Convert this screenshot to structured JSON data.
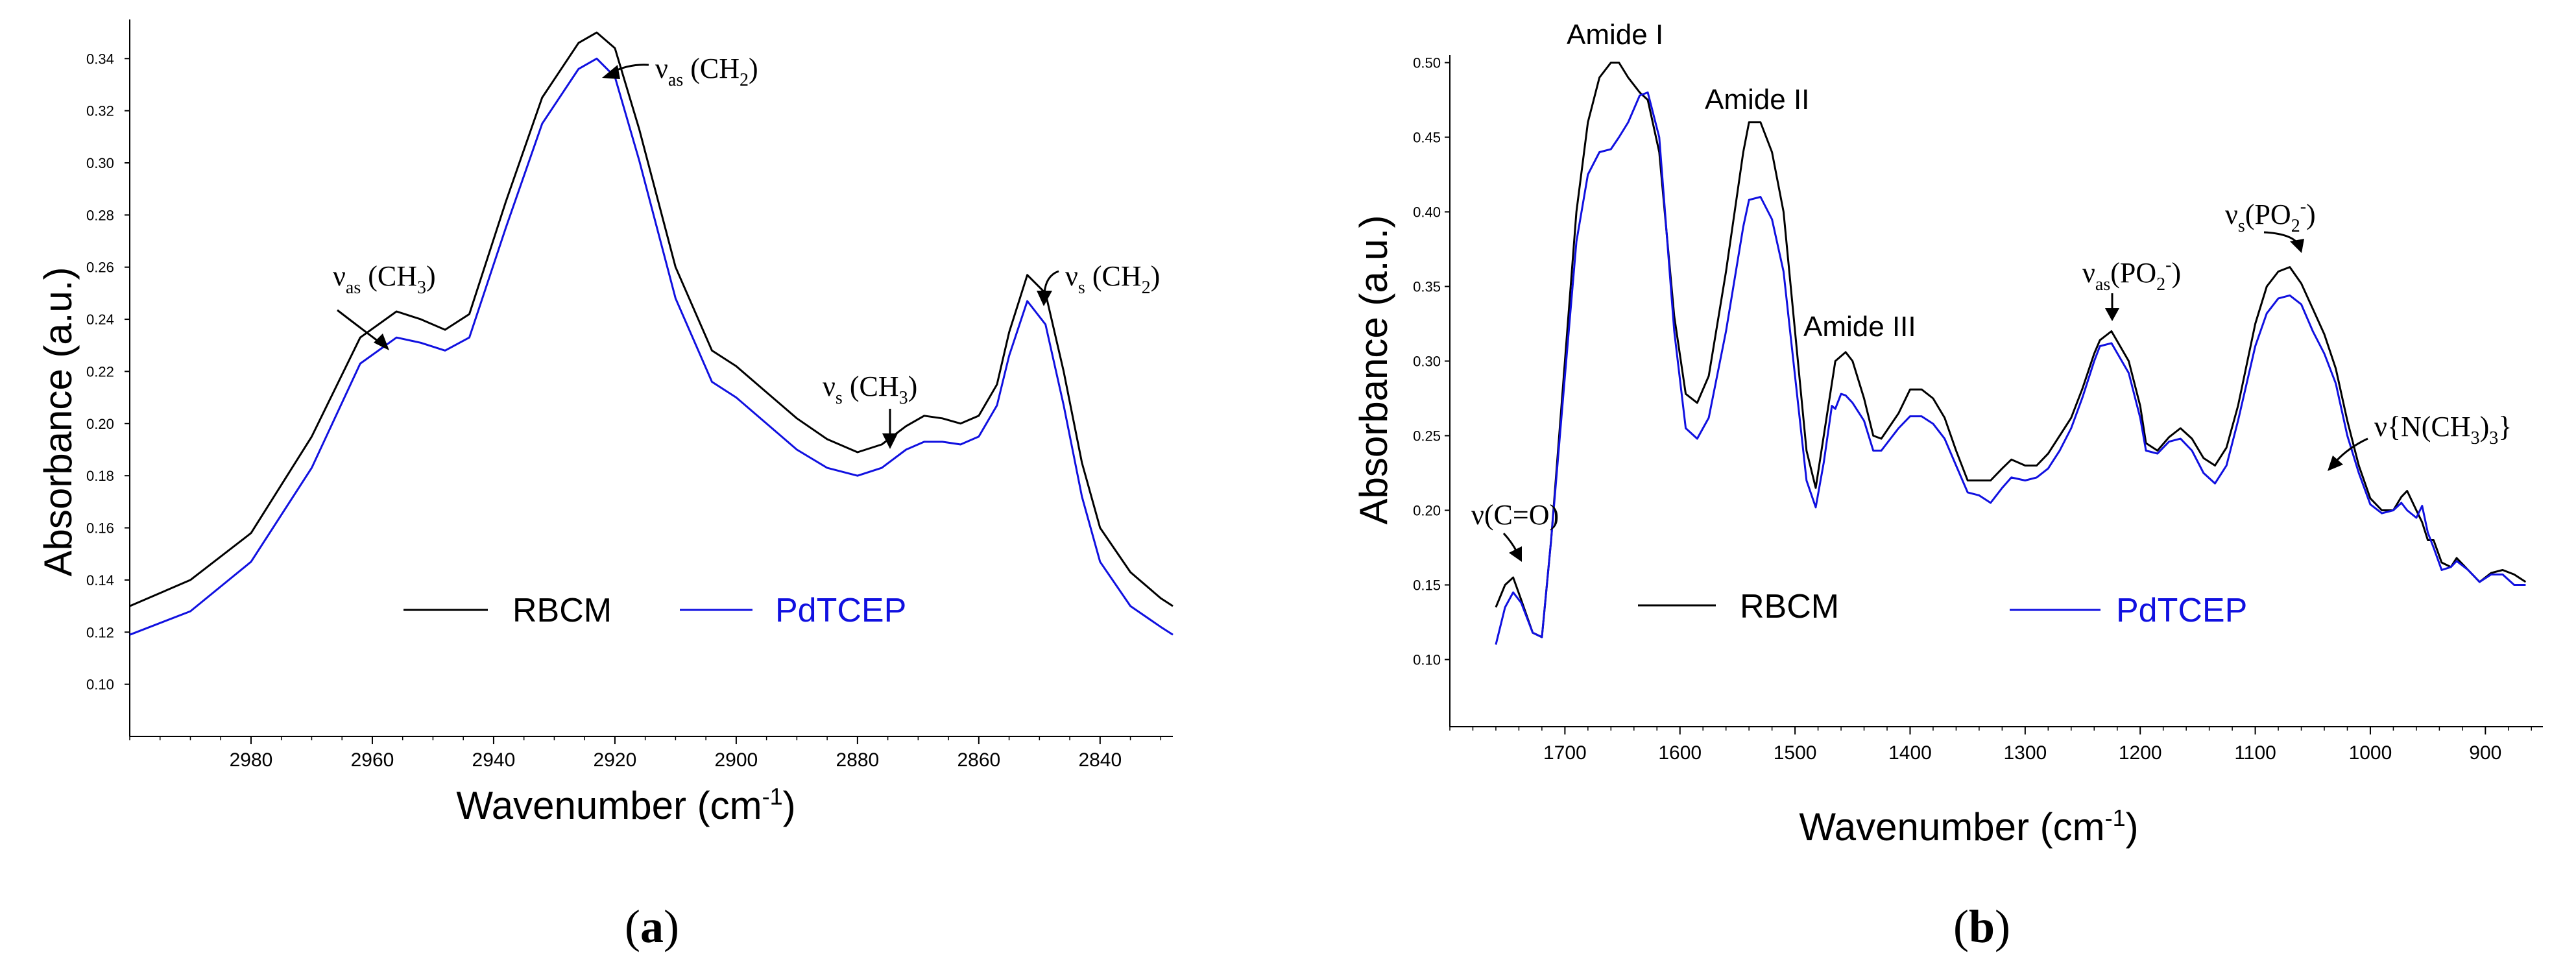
{
  "colors": {
    "rbcm": "#000000",
    "pdtcep": "#1010e0",
    "axis": "#000000"
  },
  "chart_data": [
    {
      "type": "line",
      "panel_label": {
        "open": "(",
        "letter": "a",
        "close": ")"
      },
      "xlabel": {
        "main": "Wavenumber (cm",
        "sup": "-1",
        "end": ")"
      },
      "ylabel": "Absorbance (a.u.)",
      "xlim": [
        3000,
        2828
      ],
      "ylim": [
        0.08,
        0.355
      ],
      "xticks": [
        2980,
        2960,
        2940,
        2920,
        2900,
        2880,
        2860,
        2840
      ],
      "xtick_labels": [
        "2980",
        "2960",
        "2940",
        "2920",
        "2900",
        "2880",
        "2860",
        "2840"
      ],
      "yticks": [
        0.1,
        0.12,
        0.14,
        0.16,
        0.18,
        0.2,
        0.22,
        0.24,
        0.26,
        0.28,
        0.3,
        0.32,
        0.34
      ],
      "ytick_labels": [
        "0.10",
        "0.12",
        "0.14",
        "0.16",
        "0.18",
        "0.20",
        "0.22",
        "0.24",
        "0.26",
        "0.28",
        "0.30",
        "0.32",
        "0.34"
      ],
      "legend": [
        "RBCM",
        "PdTCEP"
      ],
      "series": [
        {
          "name": "RBCM",
          "x": [
            3000,
            2990,
            2980,
            2970,
            2962,
            2956,
            2952,
            2948,
            2944,
            2938,
            2932,
            2926,
            2923,
            2920,
            2916,
            2910,
            2904,
            2900,
            2895,
            2890,
            2885,
            2880,
            2876,
            2872,
            2869,
            2866,
            2863,
            2860,
            2857,
            2855,
            2852,
            2849,
            2846,
            2843,
            2840,
            2835,
            2830,
            2828
          ],
          "y": [
            0.13,
            0.14,
            0.158,
            0.195,
            0.233,
            0.243,
            0.24,
            0.236,
            0.242,
            0.285,
            0.325,
            0.346,
            0.35,
            0.344,
            0.313,
            0.26,
            0.228,
            0.222,
            0.212,
            0.202,
            0.194,
            0.189,
            0.192,
            0.199,
            0.203,
            0.202,
            0.2,
            0.203,
            0.215,
            0.235,
            0.257,
            0.25,
            0.22,
            0.185,
            0.16,
            0.143,
            0.133,
            0.13
          ]
        },
        {
          "name": "PdTCEP",
          "x": [
            3000,
            2990,
            2980,
            2970,
            2962,
            2956,
            2952,
            2948,
            2944,
            2938,
            2932,
            2926,
            2923,
            2920,
            2916,
            2910,
            2904,
            2900,
            2895,
            2890,
            2885,
            2880,
            2876,
            2872,
            2869,
            2866,
            2863,
            2860,
            2857,
            2855,
            2852,
            2849,
            2846,
            2843,
            2840,
            2835,
            2830,
            2828
          ],
          "y": [
            0.119,
            0.128,
            0.147,
            0.183,
            0.223,
            0.233,
            0.231,
            0.228,
            0.233,
            0.275,
            0.315,
            0.336,
            0.34,
            0.333,
            0.301,
            0.248,
            0.216,
            0.21,
            0.2,
            0.19,
            0.183,
            0.18,
            0.183,
            0.19,
            0.193,
            0.193,
            0.192,
            0.195,
            0.207,
            0.226,
            0.247,
            0.238,
            0.207,
            0.172,
            0.147,
            0.13,
            0.122,
            0.119
          ]
        }
      ],
      "annotations": [
        {
          "pre": "ν",
          "sub": "as",
          "post": " (CH",
          "sub2": "3",
          "end": ")",
          "x": 2955,
          "y": 0.243
        },
        {
          "pre": "ν",
          "sub": "as",
          "post": " (CH",
          "sub2": "2",
          "end": ")",
          "x": 2923,
          "y": 0.35
        },
        {
          "pre": "ν",
          "sub": "s",
          "post": " (CH",
          "sub2": "3",
          "end": ")",
          "x": 2868,
          "y": 0.202
        },
        {
          "pre": "ν",
          "sub": "s",
          "post": " (CH",
          "sub2": "2",
          "end": ")",
          "x": 2853,
          "y": 0.257
        }
      ]
    },
    {
      "type": "line",
      "panel_label": {
        "open": "(",
        "letter": "b",
        "close": ")"
      },
      "xlabel": {
        "main": "Wavenumber (cm",
        "sup": "-1",
        "end": ")"
      },
      "ylabel": "Absorbance (a.u.)",
      "xlim": [
        1800,
        850
      ],
      "ylim": [
        0.055,
        0.505
      ],
      "xticks": [
        1700,
        1600,
        1500,
        1400,
        1300,
        1200,
        1100,
        1000,
        900
      ],
      "xtick_labels": [
        "1700",
        "1600",
        "1500",
        "1400",
        "1300",
        "1200",
        "1100",
        "1000",
        "900"
      ],
      "yticks": [
        0.1,
        0.15,
        0.2,
        0.25,
        0.3,
        0.35,
        0.4,
        0.45,
        0.5
      ],
      "ytick_labels": [
        "0.10",
        "0.15",
        "0.20",
        "0.25",
        "0.30",
        "0.35",
        "0.40",
        "0.45",
        "0.50"
      ],
      "legend": [
        "RBCM",
        "PdTCEP"
      ],
      "series": [
        {
          "name": "RBCM",
          "x": [
            1760,
            1752,
            1745,
            1738,
            1728,
            1720,
            1712,
            1700,
            1690,
            1680,
            1670,
            1660,
            1653,
            1645,
            1635,
            1628,
            1618,
            1605,
            1595,
            1585,
            1575,
            1560,
            1545,
            1540,
            1530,
            1520,
            1510,
            1500,
            1490,
            1482,
            1475,
            1465,
            1456,
            1450,
            1440,
            1432,
            1425,
            1410,
            1400,
            1390,
            1380,
            1370,
            1360,
            1350,
            1340,
            1330,
            1320,
            1312,
            1300,
            1290,
            1280,
            1270,
            1260,
            1250,
            1240,
            1235,
            1225,
            1210,
            1200,
            1195,
            1185,
            1175,
            1165,
            1155,
            1145,
            1135,
            1125,
            1115,
            1100,
            1090,
            1080,
            1070,
            1060,
            1050,
            1040,
            1030,
            1020,
            1010,
            1000,
            990,
            980,
            973,
            968,
            960,
            955,
            950,
            945,
            938,
            930,
            925,
            915,
            905,
            895,
            885,
            875,
            865
          ],
          "y": [
            0.135,
            0.15,
            0.155,
            0.14,
            0.118,
            0.115,
            0.18,
            0.3,
            0.4,
            0.46,
            0.49,
            0.5,
            0.5,
            0.49,
            0.48,
            0.475,
            0.44,
            0.33,
            0.278,
            0.272,
            0.29,
            0.36,
            0.44,
            0.46,
            0.46,
            0.44,
            0.4,
            0.32,
            0.24,
            0.215,
            0.25,
            0.3,
            0.306,
            0.3,
            0.275,
            0.25,
            0.248,
            0.265,
            0.281,
            0.281,
            0.275,
            0.262,
            0.24,
            0.22,
            0.22,
            0.22,
            0.228,
            0.234,
            0.23,
            0.23,
            0.238,
            0.25,
            0.262,
            0.282,
            0.305,
            0.314,
            0.32,
            0.3,
            0.27,
            0.245,
            0.24,
            0.249,
            0.255,
            0.248,
            0.235,
            0.23,
            0.242,
            0.27,
            0.325,
            0.35,
            0.36,
            0.363,
            0.352,
            0.335,
            0.318,
            0.295,
            0.26,
            0.23,
            0.208,
            0.2,
            0.2,
            0.209,
            0.213,
            0.2,
            0.192,
            0.18,
            0.18,
            0.165,
            0.162,
            0.168,
            0.16,
            0.152,
            0.158,
            0.16,
            0.157,
            0.152
          ]
        },
        {
          "name": "PdTCEP",
          "x": [
            1760,
            1752,
            1745,
            1738,
            1728,
            1720,
            1712,
            1700,
            1690,
            1680,
            1670,
            1660,
            1653,
            1645,
            1635,
            1628,
            1618,
            1605,
            1595,
            1585,
            1575,
            1560,
            1545,
            1540,
            1530,
            1520,
            1510,
            1500,
            1490,
            1482,
            1475,
            1468,
            1465,
            1460,
            1456,
            1450,
            1440,
            1432,
            1425,
            1410,
            1400,
            1390,
            1380,
            1370,
            1360,
            1350,
            1340,
            1330,
            1320,
            1312,
            1300,
            1290,
            1280,
            1270,
            1260,
            1250,
            1240,
            1235,
            1225,
            1210,
            1200,
            1195,
            1185,
            1175,
            1165,
            1155,
            1145,
            1135,
            1125,
            1115,
            1100,
            1090,
            1080,
            1070,
            1060,
            1050,
            1040,
            1030,
            1020,
            1010,
            1000,
            990,
            980,
            973,
            968,
            960,
            955,
            950,
            945,
            938,
            930,
            925,
            915,
            905,
            895,
            885,
            875,
            865
          ],
          "y": [
            0.11,
            0.135,
            0.145,
            0.138,
            0.118,
            0.115,
            0.18,
            0.29,
            0.38,
            0.425,
            0.44,
            0.442,
            0.45,
            0.46,
            0.478,
            0.48,
            0.45,
            0.32,
            0.255,
            0.248,
            0.262,
            0.32,
            0.39,
            0.408,
            0.41,
            0.395,
            0.36,
            0.29,
            0.22,
            0.202,
            0.232,
            0.27,
            0.268,
            0.278,
            0.277,
            0.272,
            0.26,
            0.24,
            0.24,
            0.255,
            0.263,
            0.263,
            0.258,
            0.248,
            0.23,
            0.212,
            0.21,
            0.205,
            0.215,
            0.222,
            0.22,
            0.222,
            0.228,
            0.24,
            0.255,
            0.276,
            0.3,
            0.31,
            0.312,
            0.292,
            0.262,
            0.24,
            0.238,
            0.246,
            0.248,
            0.24,
            0.225,
            0.218,
            0.23,
            0.26,
            0.31,
            0.332,
            0.342,
            0.344,
            0.338,
            0.32,
            0.305,
            0.285,
            0.25,
            0.225,
            0.204,
            0.198,
            0.2,
            0.205,
            0.2,
            0.195,
            0.203,
            0.185,
            0.175,
            0.16,
            0.162,
            0.166,
            0.16,
            0.152,
            0.157,
            0.157,
            0.15,
            0.15
          ]
        }
      ],
      "annotations": [
        {
          "kind": "amide",
          "text": "Amide I",
          "x": 1645,
          "y": 0.5
        },
        {
          "kind": "amide",
          "text": "Amide II",
          "x": 1538,
          "y": 0.46
        },
        {
          "kind": "amide",
          "text": "Amide III",
          "x": 1455,
          "y": 0.31
        },
        {
          "kind": "nu",
          "pre": "ν",
          "sub": "",
          "post": "(C=O)",
          "sub2": "",
          "end": "",
          "x": 1748,
          "y": 0.158
        },
        {
          "kind": "nu",
          "pre": "ν",
          "sub": "as",
          "post": "(PO",
          "sub2": "2",
          "sup": "-",
          "end": ")",
          "x": 1235,
          "y": 0.32
        },
        {
          "kind": "nu",
          "pre": "ν",
          "sub": "s",
          "post": "(PO",
          "sub2": "2",
          "sup": "-",
          "end": ")",
          "x": 1070,
          "y": 0.363
        },
        {
          "kind": "nu",
          "pre": "ν{N(CH",
          "sub": "",
          "post": "",
          "sub2": "3",
          "end": ")",
          "sub3": "3",
          "end2": "}",
          "x": 972,
          "y": 0.213
        }
      ]
    }
  ]
}
